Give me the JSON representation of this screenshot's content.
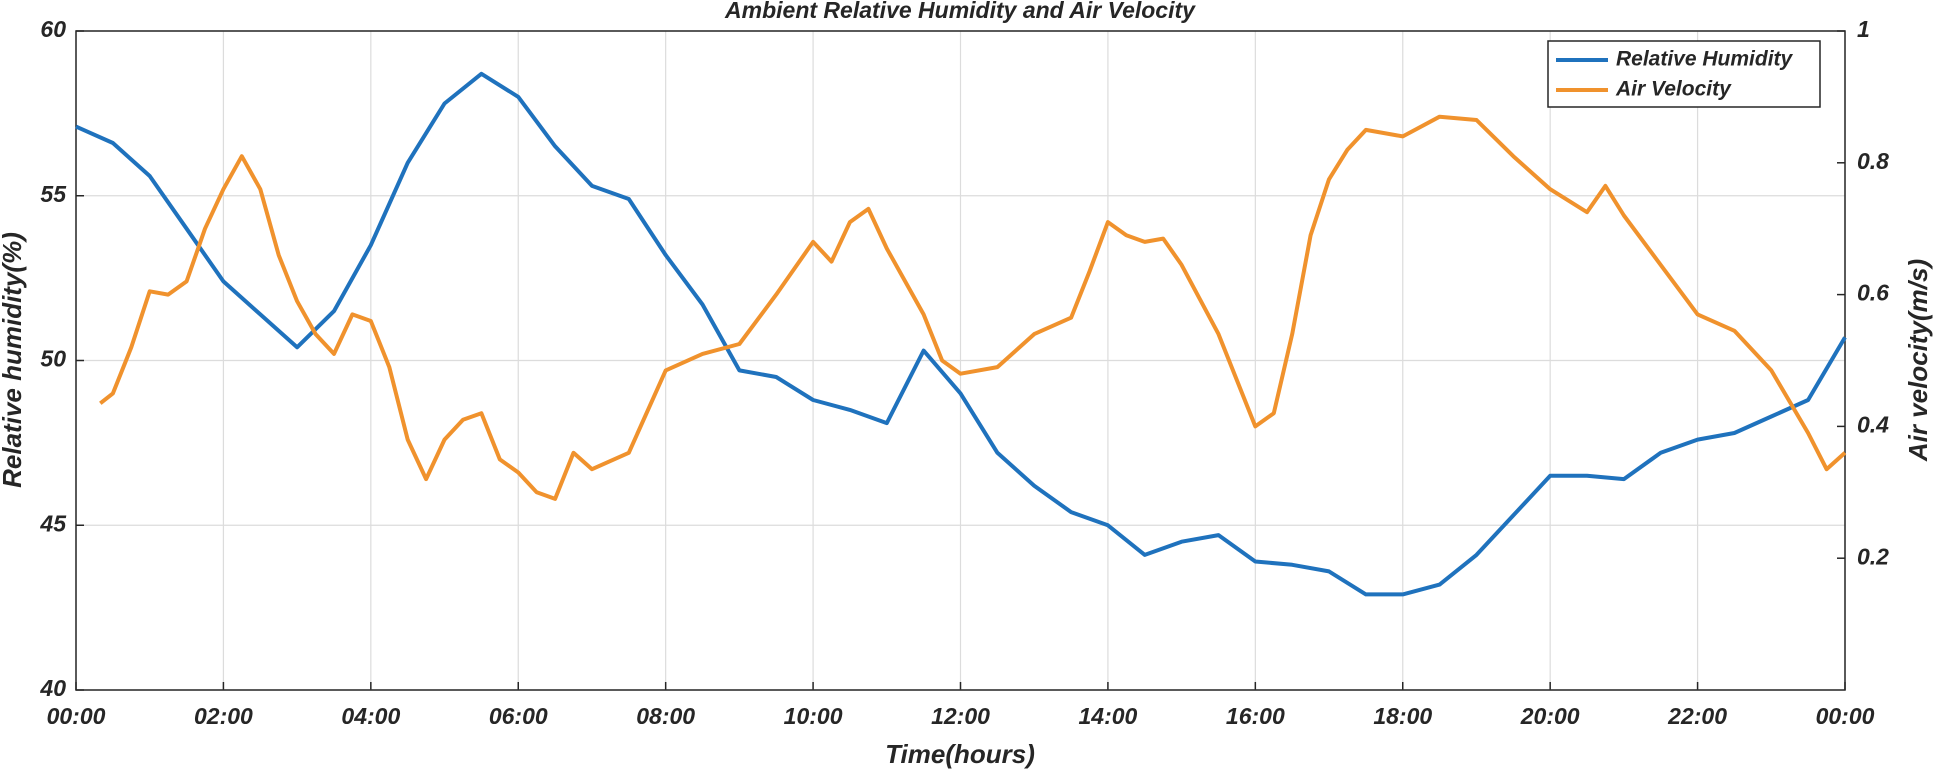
{
  "chart_data": {
    "type": "line",
    "title": "Ambient Relative Humidity and Air Velocity",
    "xlabel": "Time(hours)",
    "ylabel": "Relative humidity(%)",
    "y2label": "Air velocity(m/s)",
    "xlim": [
      0,
      24
    ],
    "xticks": [
      {
        "value": 0,
        "label": "00:00"
      },
      {
        "value": 2,
        "label": "02:00"
      },
      {
        "value": 4,
        "label": "04:00"
      },
      {
        "value": 6,
        "label": "06:00"
      },
      {
        "value": 8,
        "label": "08:00"
      },
      {
        "value": 10,
        "label": "10:00"
      },
      {
        "value": 12,
        "label": "12:00"
      },
      {
        "value": 14,
        "label": "14:00"
      },
      {
        "value": 16,
        "label": "16:00"
      },
      {
        "value": 18,
        "label": "18:00"
      },
      {
        "value": 20,
        "label": "20:00"
      },
      {
        "value": 22,
        "label": "22:00"
      },
      {
        "value": 24,
        "label": "00:00"
      }
    ],
    "ylim": [
      40,
      60
    ],
    "yticks": [
      40,
      45,
      50,
      55,
      60
    ],
    "y2lim": [
      0,
      1
    ],
    "y2ticks": [
      0.2,
      0.4,
      0.6,
      0.8,
      1
    ],
    "grid": true,
    "legend": "upper right",
    "series": [
      {
        "name": "Relative Humidity",
        "color": "#1f72bd",
        "x": [
          0,
          0.5,
          1,
          1.5,
          2,
          2.5,
          3,
          3.5,
          4,
          4.5,
          5,
          5.5,
          6,
          6.5,
          7,
          7.5,
          8,
          8.5,
          9,
          9.5,
          10,
          10.5,
          11,
          11.5,
          12,
          12.5,
          13,
          13.5,
          14,
          14.5,
          15,
          15.5,
          16,
          16.5,
          17,
          17.5,
          18,
          18.5,
          19,
          19.5,
          20,
          20.5,
          21,
          21.5,
          22,
          22.5,
          23,
          23.5,
          24
        ],
        "values": [
          57.1,
          56.6,
          55.6,
          54.0,
          52.4,
          51.4,
          50.4,
          51.5,
          53.5,
          56.0,
          57.8,
          58.7,
          58.0,
          56.5,
          55.3,
          54.9,
          53.2,
          51.7,
          49.7,
          49.5,
          48.8,
          48.5,
          48.1,
          50.3,
          49.0,
          47.2,
          46.2,
          45.4,
          45.0,
          44.1,
          44.5,
          44.7,
          43.9,
          43.8,
          43.6,
          42.9,
          42.9,
          43.2,
          44.1,
          45.3,
          46.5,
          46.5,
          46.4,
          47.2,
          47.6,
          47.8,
          48.3,
          48.8,
          50.7
        ]
      },
      {
        "name": "Air Velocity",
        "color": "#f0922d",
        "axis": "y2",
        "x": [
          0.33,
          0.5,
          0.75,
          1,
          1.25,
          1.5,
          1.75,
          2,
          2.25,
          2.5,
          2.75,
          3,
          3.25,
          3.5,
          3.75,
          4,
          4.25,
          4.5,
          4.75,
          5,
          5.25,
          5.5,
          5.75,
          6,
          6.25,
          6.5,
          6.75,
          7,
          7.5,
          8,
          8.5,
          9,
          9.5,
          10,
          10.25,
          10.5,
          10.75,
          11,
          11.5,
          11.75,
          12,
          12.5,
          13,
          13.5,
          13.75,
          14,
          14.25,
          14.5,
          14.75,
          15,
          15.5,
          16,
          16.25,
          16.5,
          16.75,
          17,
          17.25,
          17.5,
          18,
          18.5,
          19,
          19.5,
          20,
          20.5,
          20.75,
          21,
          21.5,
          22,
          22.5,
          23,
          23.5,
          23.75,
          24
        ],
        "values": [
          0.435,
          0.45,
          0.52,
          0.605,
          0.6,
          0.62,
          0.7,
          0.76,
          0.81,
          0.76,
          0.66,
          0.59,
          0.54,
          0.51,
          0.57,
          0.56,
          0.49,
          0.38,
          0.32,
          0.38,
          0.41,
          0.42,
          0.35,
          0.33,
          0.3,
          0.29,
          0.36,
          0.335,
          0.36,
          0.485,
          0.51,
          0.525,
          0.6,
          0.68,
          0.65,
          0.71,
          0.73,
          0.67,
          0.57,
          0.5,
          0.48,
          0.49,
          0.54,
          0.565,
          0.635,
          0.71,
          0.69,
          0.68,
          0.685,
          0.645,
          0.54,
          0.4,
          0.42,
          0.54,
          0.69,
          0.775,
          0.82,
          0.85,
          0.84,
          0.87,
          0.865,
          0.81,
          0.76,
          0.725,
          0.765,
          0.72,
          0.645,
          0.57,
          0.545,
          0.485,
          0.39,
          0.335,
          0.36
        ]
      }
    ]
  }
}
